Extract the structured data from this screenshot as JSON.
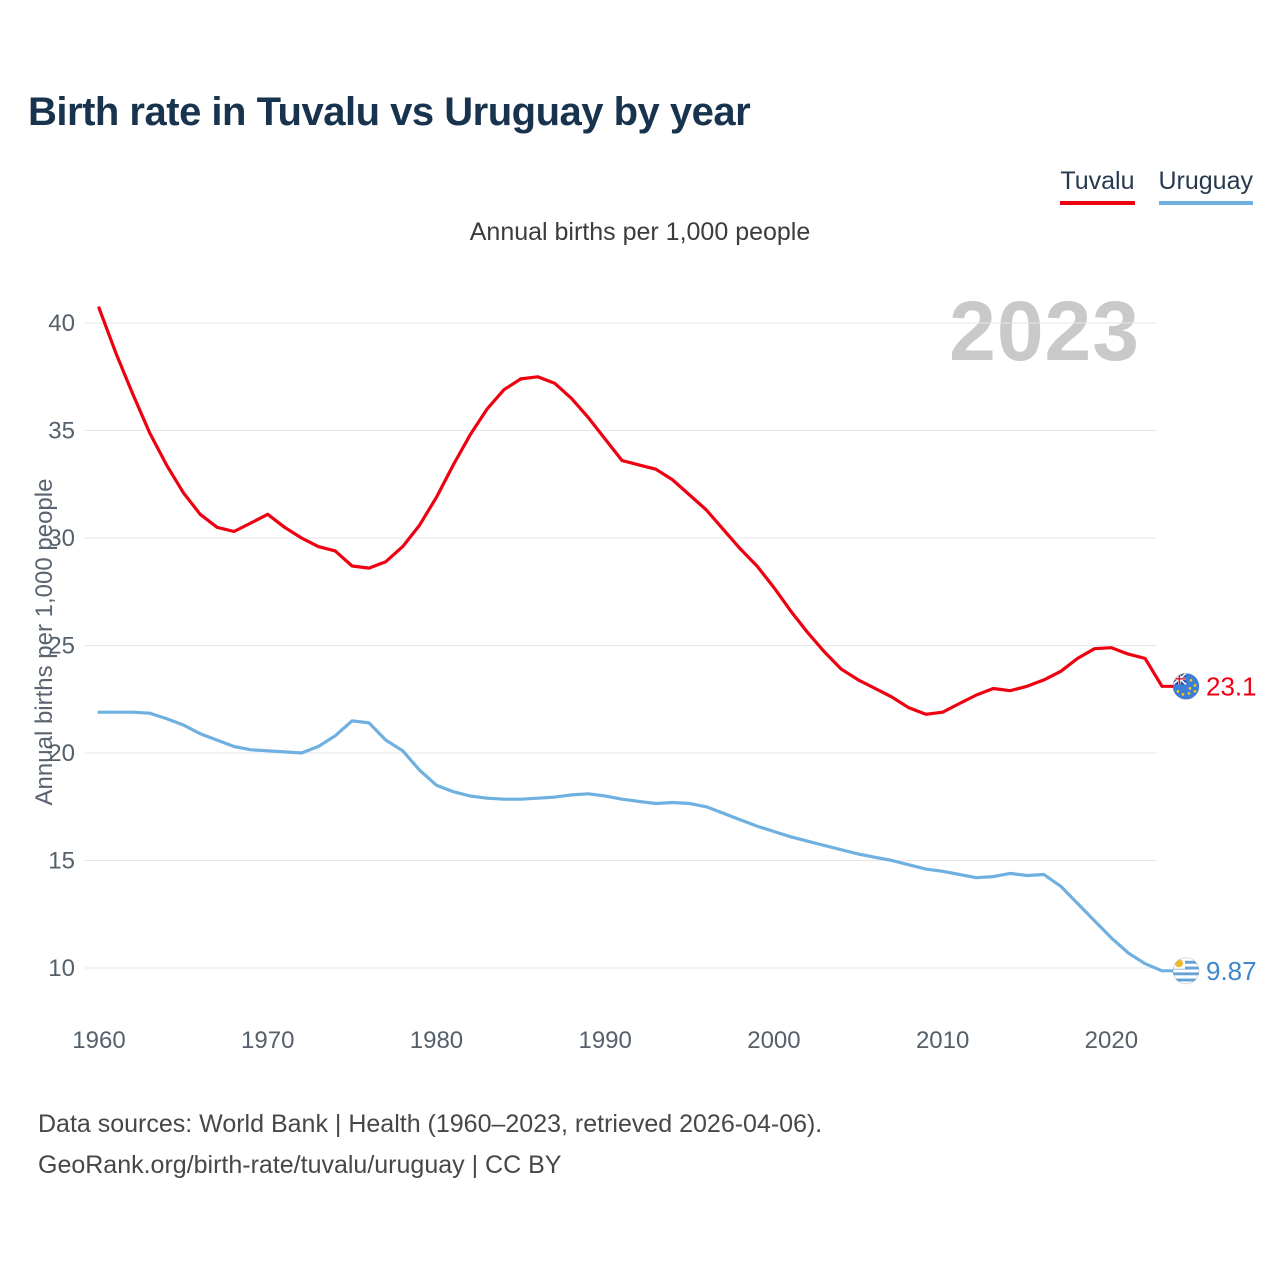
{
  "header": {
    "title": "Birth rate in Tuvalu vs Uruguay by year"
  },
  "legend": {
    "items": [
      {
        "label": "Tuvalu",
        "color": "#ee0011"
      },
      {
        "label": "Uruguay",
        "color": "#6fb0e0"
      }
    ]
  },
  "chart": {
    "subtitle": "Annual births per 1,000 people",
    "y_axis_title": "Annual births per 1,000 people",
    "watermark": "2023"
  },
  "chart_data": {
    "type": "line",
    "title": "Birth rate in Tuvalu vs Uruguay by year",
    "subtitle": "Annual births per 1,000 people",
    "xlabel": "",
    "ylabel": "Annual births per 1,000 people",
    "ylim": [
      10,
      40
    ],
    "x_range": [
      1960,
      2023
    ],
    "x_ticks": [
      1960,
      1970,
      1980,
      1990,
      2000,
      2010,
      2020
    ],
    "y_ticks": [
      10,
      15,
      20,
      25,
      30,
      35,
      40
    ],
    "grid": "horizontal",
    "legend_position": "top-right",
    "watermark": "2023",
    "x": [
      1960,
      1961,
      1962,
      1963,
      1964,
      1965,
      1966,
      1967,
      1968,
      1969,
      1970,
      1971,
      1972,
      1973,
      1974,
      1975,
      1976,
      1977,
      1978,
      1979,
      1980,
      1981,
      1982,
      1983,
      1984,
      1985,
      1986,
      1987,
      1988,
      1989,
      1990,
      1991,
      1992,
      1993,
      1994,
      1995,
      1996,
      1997,
      1998,
      1999,
      2000,
      2001,
      2002,
      2003,
      2004,
      2005,
      2006,
      2007,
      2008,
      2009,
      2010,
      2011,
      2012,
      2013,
      2014,
      2015,
      2016,
      2017,
      2018,
      2019,
      2020,
      2021,
      2022,
      2023
    ],
    "series": [
      {
        "name": "Tuvalu",
        "color": "#ee0011",
        "label_color": "#ee0011",
        "end_label": "23.1",
        "flag_icon": "tuvalu-flag-icon",
        "values": [
          40.7,
          38.6,
          36.7,
          34.9,
          33.4,
          32.1,
          31.1,
          30.5,
          30.3,
          30.7,
          31.1,
          30.5,
          30.0,
          29.6,
          29.4,
          28.7,
          28.6,
          28.9,
          29.6,
          30.6,
          31.9,
          33.4,
          34.8,
          36.0,
          36.9,
          37.4,
          37.5,
          37.2,
          36.5,
          35.6,
          34.6,
          33.6,
          33.4,
          33.2,
          32.7,
          32.0,
          31.3,
          30.4,
          29.5,
          28.7,
          27.7,
          26.6,
          25.6,
          24.7,
          23.9,
          23.4,
          23.0,
          22.6,
          22.1,
          21.8,
          21.9,
          22.3,
          22.7,
          23.0,
          22.9,
          23.1,
          23.4,
          23.8,
          24.4,
          24.85,
          24.9,
          24.6,
          24.4,
          23.1
        ]
      },
      {
        "name": "Uruguay",
        "color": "#6fb0e0",
        "label_color": "#3e87cd",
        "end_label": "9.87",
        "flag_icon": "uruguay-flag-icon",
        "values": [
          21.9,
          21.9,
          21.9,
          21.85,
          21.6,
          21.3,
          20.9,
          20.6,
          20.3,
          20.15,
          20.1,
          20.05,
          20.0,
          20.3,
          20.8,
          21.5,
          21.4,
          20.6,
          20.1,
          19.2,
          18.5,
          18.2,
          18.0,
          17.9,
          17.85,
          17.85,
          17.9,
          17.95,
          18.05,
          18.1,
          18.0,
          17.85,
          17.75,
          17.65,
          17.7,
          17.65,
          17.5,
          17.2,
          16.9,
          16.6,
          16.35,
          16.1,
          15.9,
          15.7,
          15.5,
          15.3,
          15.15,
          15.0,
          14.8,
          14.6,
          14.5,
          14.35,
          14.2,
          14.25,
          14.4,
          14.3,
          14.35,
          13.8,
          13.0,
          12.2,
          11.4,
          10.7,
          10.2,
          9.87
        ]
      }
    ]
  },
  "footer": {
    "line1": "Data sources: World Bank | Health (1960–2023, retrieved 2026-04-06).",
    "line2": "GeoRank.org/birth-rate/tuvalu/uruguay | CC BY"
  }
}
